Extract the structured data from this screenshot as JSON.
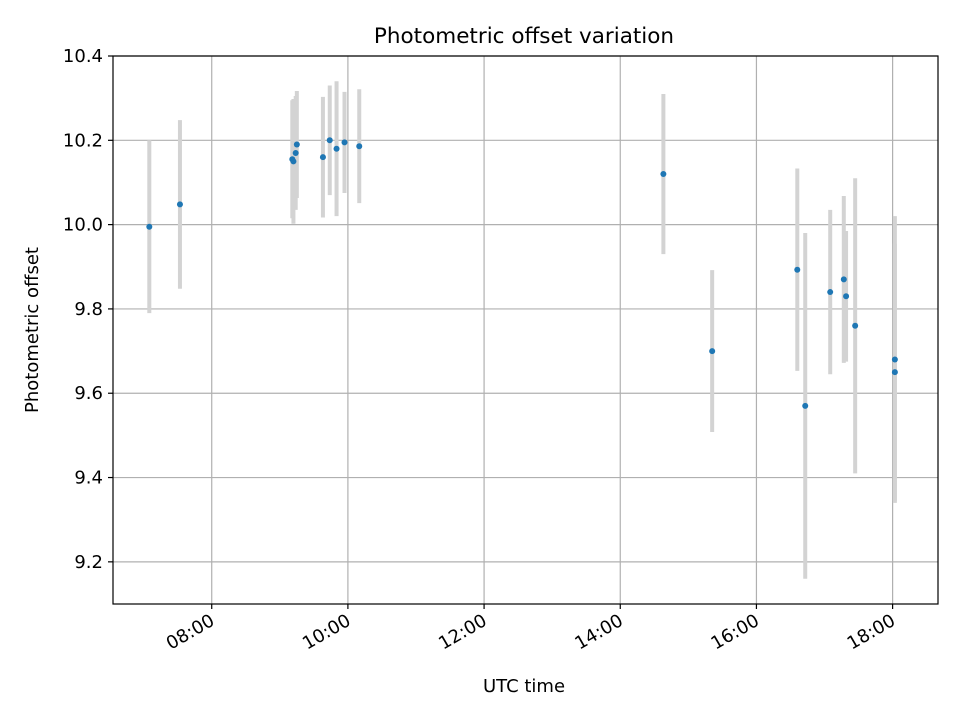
{
  "chart_data": {
    "type": "scatter",
    "title": "Photometric offset variation",
    "xlabel": "UTC time",
    "ylabel": "Photometric offset",
    "xlim": [
      "06:33",
      "18:40"
    ],
    "ylim": [
      9.1,
      10.4
    ],
    "x_ticks": [
      "08:00",
      "10:00",
      "12:00",
      "14:00",
      "16:00",
      "18:00"
    ],
    "y_ticks": [
      "9.2",
      "9.4",
      "9.6",
      "9.8",
      "10.0",
      "10.2",
      "10.4"
    ],
    "grid": true,
    "colors": {
      "marker": "#1f77b4",
      "errorbar": "#d3d3d3",
      "grid": "#b0b0b0",
      "axes": "#000000"
    },
    "points": [
      {
        "x": "07:05",
        "y": 9.995,
        "err": 0.205
      },
      {
        "x": "07:32",
        "y": 10.048,
        "err": 0.2
      },
      {
        "x": "09:11",
        "y": 10.155,
        "err": 0.14
      },
      {
        "x": "09:12",
        "y": 10.15,
        "err": 0.148
      },
      {
        "x": "09:14",
        "y": 10.17,
        "err": 0.135
      },
      {
        "x": "09:15",
        "y": 10.19,
        "err": 0.127
      },
      {
        "x": "09:38",
        "y": 10.16,
        "err": 0.143
      },
      {
        "x": "09:44",
        "y": 10.2,
        "err": 0.13
      },
      {
        "x": "09:50",
        "y": 10.18,
        "err": 0.16
      },
      {
        "x": "09:57",
        "y": 10.195,
        "err": 0.12
      },
      {
        "x": "10:10",
        "y": 10.186,
        "err": 0.135
      },
      {
        "x": "14:38",
        "y": 10.12,
        "err": 0.19
      },
      {
        "x": "15:21",
        "y": 9.7,
        "err": 0.192
      },
      {
        "x": "16:36",
        "y": 9.893,
        "err": 0.24
      },
      {
        "x": "16:43",
        "y": 9.57,
        "err": 0.41
      },
      {
        "x": "17:05",
        "y": 9.84,
        "err": 0.195
      },
      {
        "x": "17:17",
        "y": 9.87,
        "err": 0.198
      },
      {
        "x": "17:19",
        "y": 9.83,
        "err": 0.155
      },
      {
        "x": "17:27",
        "y": 9.76,
        "err": 0.35
      },
      {
        "x": "18:02",
        "y": 9.68,
        "err": 0.34
      },
      {
        "x": "18:02",
        "y": 9.65,
        "err": 0.305
      }
    ]
  }
}
